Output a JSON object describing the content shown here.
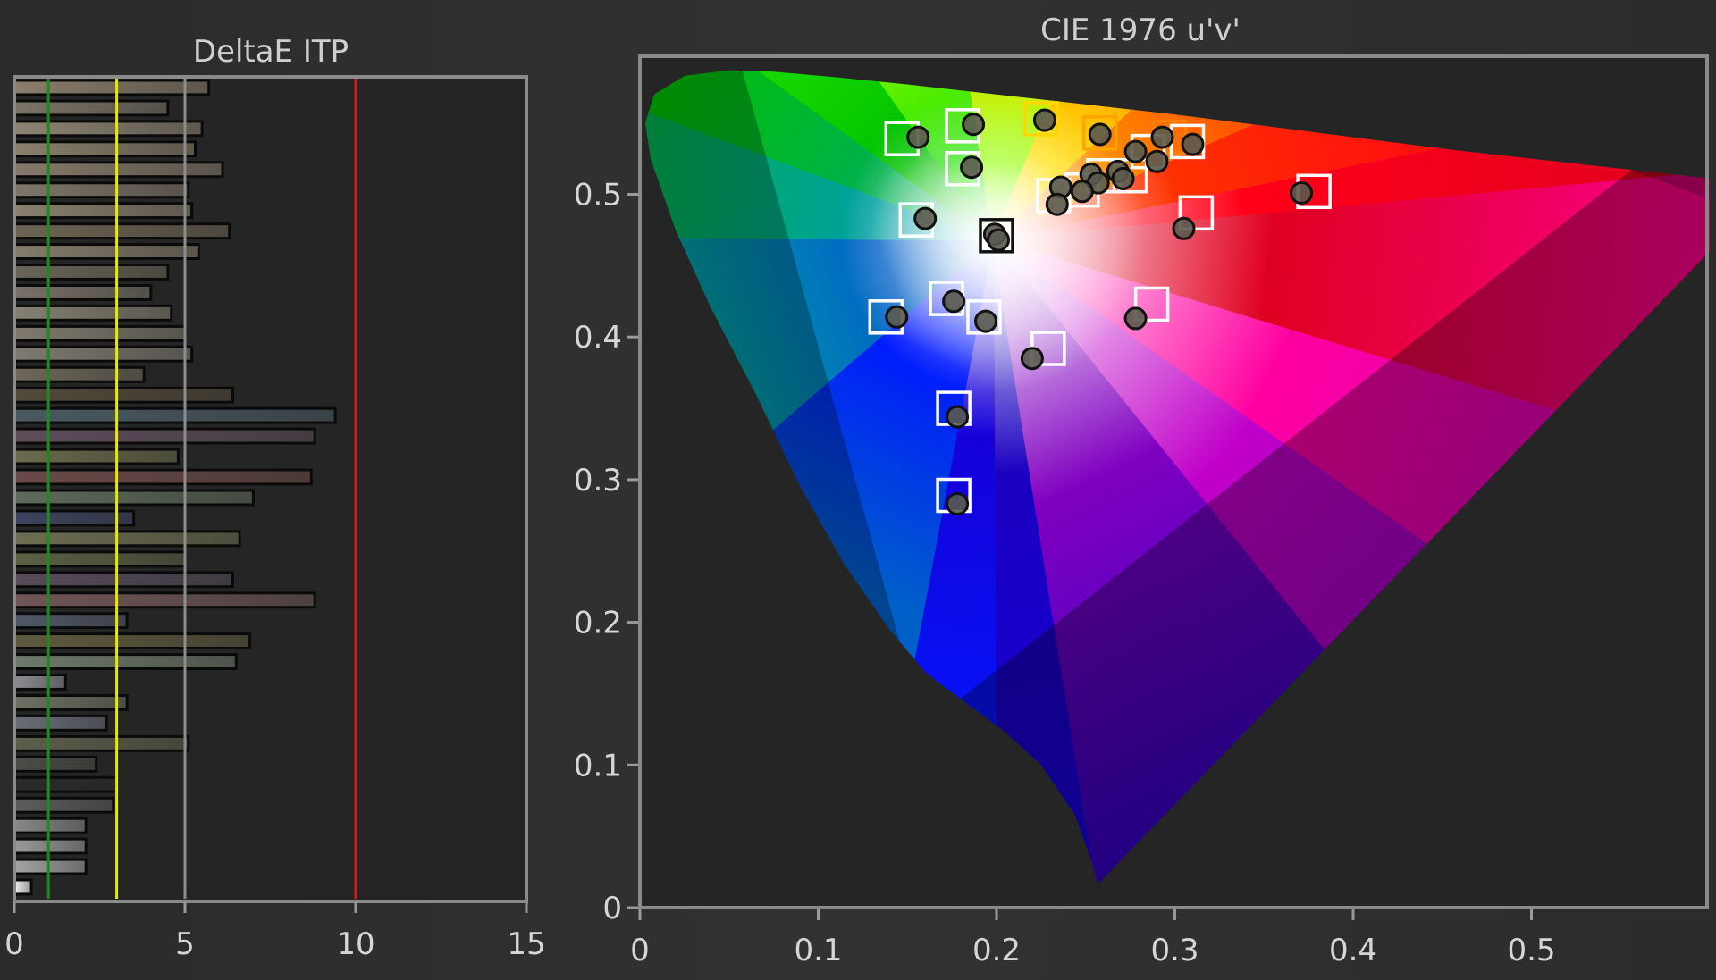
{
  "chart_data": [
    {
      "type": "bar",
      "orientation": "horizontal",
      "title": "DeltaE ITP",
      "xlim": [
        0,
        15
      ],
      "xticks": [
        0,
        5,
        10,
        15
      ],
      "grid": "vertical at 5",
      "reference_lines": [
        {
          "value": 1,
          "color": "#1e8a1e"
        },
        {
          "value": 3,
          "color": "#e8e800"
        },
        {
          "value": 10,
          "color": "#d41e1e"
        }
      ],
      "values": [
        5.7,
        4.5,
        5.5,
        5.3,
        6.1,
        5.1,
        5.2,
        6.3,
        5.4,
        4.5,
        4.0,
        4.6,
        5.0,
        5.2,
        3.8,
        6.4,
        9.4,
        8.8,
        4.8,
        8.7,
        7.0,
        3.5,
        6.6,
        5.0,
        6.4,
        8.8,
        3.3,
        6.9,
        6.5,
        1.5,
        3.3,
        2.7,
        5.1,
        2.4,
        3.0,
        2.9,
        2.1,
        2.1,
        2.1,
        0.5
      ],
      "bar_colors": [
        "#8a7e6c",
        "#7c7468",
        "#8d8472",
        "#8a806c",
        "#857a6a",
        "#7e766a",
        "#8a806e",
        "#6d6452",
        "#847c6c",
        "#6a6558",
        "#787268",
        "#858072",
        "#7f7a6e",
        "#7e7a70",
        "#6e685a",
        "#524a3a",
        "#4a5a62",
        "#5e4e5a",
        "#6a6a4c",
        "#6a4a48",
        "#5e6a5a",
        "#3e4460",
        "#6e6e52",
        "#5c6044",
        "#564c5a",
        "#705656",
        "#505868",
        "#5e5a3e",
        "#6e7a6a",
        "#8c8c92",
        "#6e7262",
        "#6a6e78",
        "#5e5e4c",
        "#4c4c48",
        "#2a2a2a",
        "#5c5c5c",
        "#888888",
        "#9a9a9a",
        "#a4a4a4",
        "#f0f0f0"
      ]
    },
    {
      "type": "scatter",
      "title": "CIE 1976 u'v'",
      "xlim": [
        0,
        0.6
      ],
      "ylim": [
        0,
        0.6
      ],
      "xticks": [
        0,
        0.1,
        0.2,
        0.3,
        0.4,
        0.5
      ],
      "yticks": [
        0,
        0.1,
        0.2,
        0.3,
        0.4,
        0.5
      ],
      "gamut": "CIE 1976 u'v' spectral locus with Rec.2020 triangle",
      "targets": [
        {
          "x": 0.147,
          "y": 0.539,
          "color": "#ffffff"
        },
        {
          "x": 0.181,
          "y": 0.548,
          "color": "#ffffff"
        },
        {
          "x": 0.181,
          "y": 0.518,
          "color": "#ffffff"
        },
        {
          "x": 0.225,
          "y": 0.553,
          "color": "#ffd700"
        },
        {
          "x": 0.258,
          "y": 0.543,
          "color": "#ffa500"
        },
        {
          "x": 0.297,
          "y": 0.54,
          "color": "#ff7f00"
        },
        {
          "x": 0.307,
          "y": 0.537,
          "color": "#ffffff"
        },
        {
          "x": 0.285,
          "y": 0.53,
          "color": "#ffffff"
        },
        {
          "x": 0.275,
          "y": 0.513,
          "color": "#ffffff"
        },
        {
          "x": 0.26,
          "y": 0.513,
          "color": "#ffffff"
        },
        {
          "x": 0.248,
          "y": 0.503,
          "color": "#ffffff"
        },
        {
          "x": 0.232,
          "y": 0.499,
          "color": "#ffffff"
        },
        {
          "x": 0.155,
          "y": 0.482,
          "color": "#ffffff"
        },
        {
          "x": 0.2,
          "y": 0.471,
          "color": "#111111"
        },
        {
          "x": 0.312,
          "y": 0.487,
          "color": "#ffffff"
        },
        {
          "x": 0.378,
          "y": 0.502,
          "color": "#ffffff"
        },
        {
          "x": 0.138,
          "y": 0.414,
          "color": "#ffffff"
        },
        {
          "x": 0.172,
          "y": 0.427,
          "color": "#ffffff"
        },
        {
          "x": 0.193,
          "y": 0.414,
          "color": "#ffffff"
        },
        {
          "x": 0.287,
          "y": 0.423,
          "color": "#ffffff"
        },
        {
          "x": 0.229,
          "y": 0.392,
          "color": "#ffffff"
        },
        {
          "x": 0.176,
          "y": 0.35,
          "color": "#ffffff"
        },
        {
          "x": 0.176,
          "y": 0.289,
          "color": "#ffffff"
        }
      ],
      "measured": [
        {
          "x": 0.156,
          "y": 0.54
        },
        {
          "x": 0.187,
          "y": 0.549
        },
        {
          "x": 0.186,
          "y": 0.519
        },
        {
          "x": 0.227,
          "y": 0.552
        },
        {
          "x": 0.258,
          "y": 0.542
        },
        {
          "x": 0.293,
          "y": 0.54
        },
        {
          "x": 0.31,
          "y": 0.535
        },
        {
          "x": 0.278,
          "y": 0.53
        },
        {
          "x": 0.29,
          "y": 0.523
        },
        {
          "x": 0.268,
          "y": 0.516
        },
        {
          "x": 0.271,
          "y": 0.511
        },
        {
          "x": 0.253,
          "y": 0.514
        },
        {
          "x": 0.257,
          "y": 0.508
        },
        {
          "x": 0.248,
          "y": 0.502
        },
        {
          "x": 0.236,
          "y": 0.505
        },
        {
          "x": 0.234,
          "y": 0.493
        },
        {
          "x": 0.16,
          "y": 0.483
        },
        {
          "x": 0.199,
          "y": 0.472
        },
        {
          "x": 0.201,
          "y": 0.468
        },
        {
          "x": 0.305,
          "y": 0.476
        },
        {
          "x": 0.371,
          "y": 0.501
        },
        {
          "x": 0.144,
          "y": 0.414
        },
        {
          "x": 0.176,
          "y": 0.425
        },
        {
          "x": 0.194,
          "y": 0.411
        },
        {
          "x": 0.278,
          "y": 0.413
        },
        {
          "x": 0.22,
          "y": 0.385
        },
        {
          "x": 0.178,
          "y": 0.344
        },
        {
          "x": 0.178,
          "y": 0.283
        }
      ]
    }
  ]
}
